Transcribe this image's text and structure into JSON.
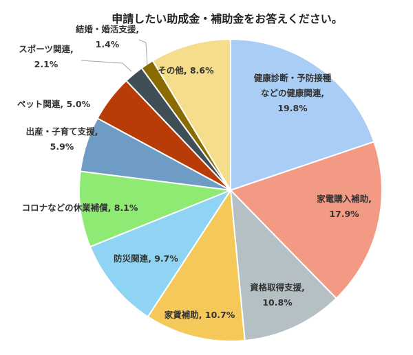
{
  "chart_data": {
    "type": "pie",
    "title": "申請したい助成金・補助金をお答えください。",
    "start": "12 o'clock, clockwise",
    "slices": [
      {
        "label": "健康診断・予防接種などの健康関連",
        "value": 19.8,
        "text_lines": [
          "健康診断・予防接種",
          "などの健康関連,",
          "19.8%"
        ],
        "color": "#a9cdf5"
      },
      {
        "label": "家電購入補助",
        "value": 17.9,
        "text_lines": [
          "家電購入補助,",
          "17.9%"
        ],
        "color": "#f29a84"
      },
      {
        "label": "資格取得支援",
        "value": 10.8,
        "text_lines": [
          "資格取得支援,",
          "10.8%"
        ],
        "color": "#b5c0c5"
      },
      {
        "label": "家賃補助",
        "value": 10.7,
        "text_lines": [
          "家賃補助, 10.7%"
        ],
        "color": "#f4c95a"
      },
      {
        "label": "防災関連",
        "value": 9.7,
        "text_lines": [
          "防災関連, 9.7%"
        ],
        "color": "#8fd4f2"
      },
      {
        "label": "コロナなどの休業補償",
        "value": 8.1,
        "text_lines": [
          "コロナなどの休業補償, 8.1%"
        ],
        "color": "#8eea72"
      },
      {
        "label": "出産・子育て支援",
        "value": 5.9,
        "text_lines": [
          "出産・子育て支援,",
          "5.9%"
        ],
        "color": "#6f9cc4"
      },
      {
        "label": "ペット関連",
        "value": 5.0,
        "text_lines": [
          "ペット関連, 5.0%"
        ],
        "color": "#b83c08"
      },
      {
        "label": "スポーツ関連",
        "value": 2.1,
        "text_lines": [
          "スポーツ関連,",
          "2.1%"
        ],
        "color": "#3f4e57"
      },
      {
        "label": "結婚・婚活支援",
        "value": 1.4,
        "text_lines": [
          "結婚・婚活支援,",
          "1.4%"
        ],
        "color": "#8a6b00"
      },
      {
        "label": "その他",
        "value": 8.6,
        "text_lines": [
          "その他, 8.6%"
        ],
        "color": "#f6dd8b"
      }
    ]
  }
}
